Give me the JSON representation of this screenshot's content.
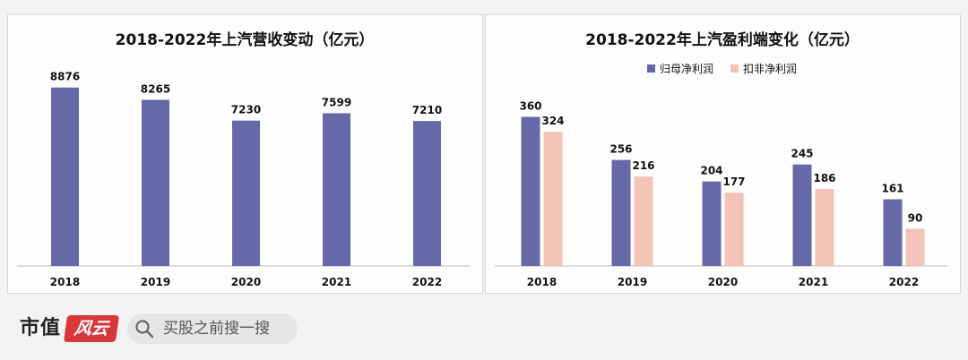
{
  "colors": {
    "revenue_bar": "#6569a8",
    "net_profit_bar": "#6569a8",
    "deducted_profit_bar": "#f3c3b7",
    "brand_red": "#d8383a",
    "axis": "#bdbdbd"
  },
  "chart_data": [
    {
      "type": "bar",
      "title": "2018-2022年上汽营收变动（亿元）",
      "categories": [
        "2018",
        "2019",
        "2020",
        "2021",
        "2022"
      ],
      "values": [
        8876,
        8265,
        7230,
        7599,
        7210
      ],
      "ylim": [
        0,
        9800
      ],
      "xlabel": "",
      "ylabel": "",
      "grid": false,
      "data_labels": true
    },
    {
      "type": "bar",
      "title": "2018-2022年上汽盈利端变化（亿元）",
      "categories": [
        "2018",
        "2019",
        "2020",
        "2021",
        "2022"
      ],
      "series": [
        {
          "name": "归母净利润",
          "values": [
            360,
            256,
            204,
            245,
            161
          ]
        },
        {
          "name": "扣非净利润",
          "values": [
            324,
            216,
            177,
            186,
            90
          ]
        }
      ],
      "ylim": [
        0,
        400
      ],
      "legend": "top-center",
      "xlabel": "",
      "ylabel": "",
      "grid": false,
      "data_labels": true
    }
  ],
  "footer": {
    "brand_name": "市值",
    "brand_tag": "风云",
    "search_text": "买股之前搜一搜",
    "search_icon": "search-icon"
  }
}
